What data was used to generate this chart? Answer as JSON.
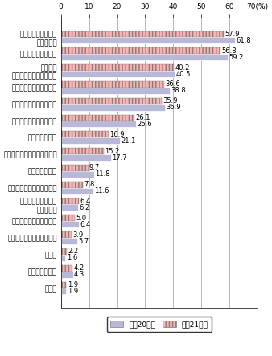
{
  "categories": [
    "セキュリティ対策の\n確立が困難",
    "ウイルス感染に不安",
    "従業員の\nセキュリティ意識が低い",
    "運用・管理の費用が増大",
    "運用・管理の人材が不足",
    "障害時の復旧作業が困難",
    "通信料金が高い",
    "導入成果の定量的把握が困難",
    "通信速度が遅い",
    "導入成果を得ることが困難",
    "著作権等知的財産の\n保護に不安",
    "認証技術の信頼性に不安",
    "電子的決済の信頼性に不安",
    "その他",
    "特に問題点なし",
    "無回答"
  ],
  "values_2008": [
    61.8,
    59.2,
    40.5,
    38.8,
    36.9,
    26.6,
    21.1,
    17.7,
    11.8,
    11.6,
    6.2,
    6.4,
    5.7,
    1.6,
    4.3,
    1.9
  ],
  "values_2009": [
    57.9,
    56.8,
    40.2,
    36.6,
    35.9,
    26.1,
    16.9,
    15.2,
    9.7,
    7.8,
    6.4,
    5.0,
    3.9,
    2.2,
    4.2,
    1.9
  ],
  "color_2008": "#b8b8d8",
  "color_2009": "#ffb0b0",
  "hatch_2009": "||||",
  "label_2008": "平成20年末",
  "label_2009": "平成21年末",
  "xlim": [
    0,
    70
  ],
  "xticks": [
    0,
    10,
    20,
    30,
    40,
    50,
    60,
    70
  ],
  "bar_height": 0.38,
  "fontsize_label": 6.2,
  "fontsize_tick": 6.5,
  "fontsize_value": 6.0
}
